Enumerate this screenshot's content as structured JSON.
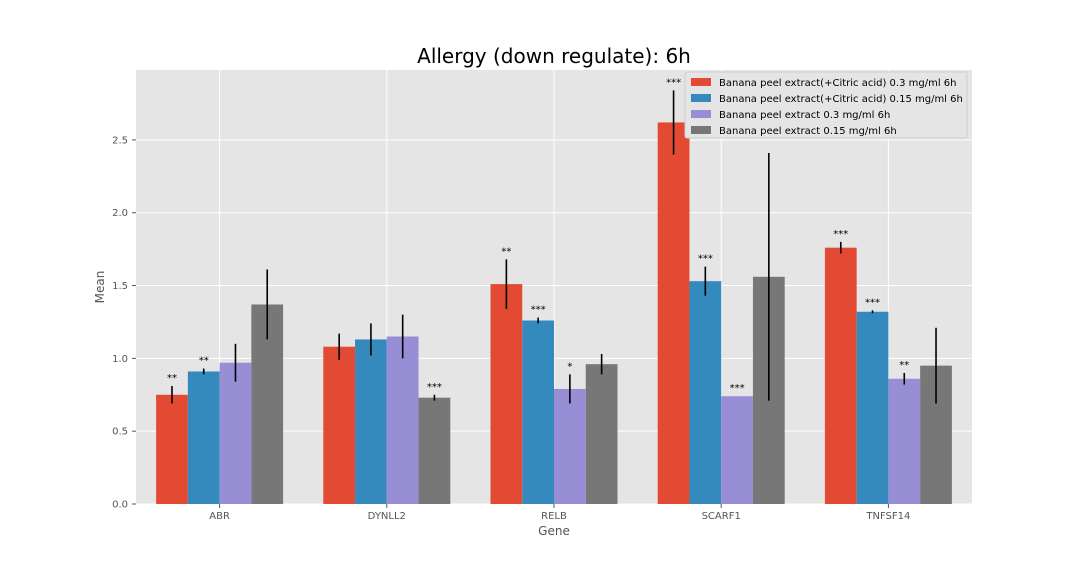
{
  "chart_data": {
    "type": "bar",
    "title": "Allergy (down regulate): 6h",
    "xlabel": "Gene",
    "ylabel": "Mean",
    "categories": [
      "ABR",
      "DYNLL2",
      "RELB",
      "SCARF1",
      "TNFSF14"
    ],
    "ylim": [
      0,
      2.98
    ],
    "yticks": [
      "0.0",
      "0.5",
      "1.0",
      "1.5",
      "2.0",
      "2.5"
    ],
    "grid": true,
    "legend_position": "top-right",
    "series": [
      {
        "name": "Banana peel extract(+Citric acid) 0.3 mg/ml 6h",
        "color": "#e24a33",
        "values": [
          0.75,
          1.08,
          1.51,
          2.62,
          1.76
        ],
        "errors": [
          0.06,
          0.09,
          0.17,
          0.22,
          0.04
        ],
        "significance": [
          "**",
          "",
          "**",
          "***",
          "***"
        ]
      },
      {
        "name": "Banana peel extract(+Citric acid) 0.15 mg/ml 6h",
        "color": "#348abd",
        "values": [
          0.91,
          1.13,
          1.26,
          1.53,
          1.32
        ],
        "errors": [
          0.02,
          0.11,
          0.02,
          0.1,
          0.01
        ],
        "significance": [
          "**",
          "",
          "***",
          "***",
          "***"
        ]
      },
      {
        "name": "Banana peel extract 0.3 mg/ml 6h",
        "color": "#988ed5",
        "values": [
          0.97,
          1.15,
          0.79,
          0.74,
          0.86
        ],
        "errors": [
          0.13,
          0.15,
          0.1,
          0.0,
          0.04
        ],
        "significance": [
          "",
          "",
          "*",
          "***",
          "**"
        ]
      },
      {
        "name": "Banana peel extract 0.15 mg/ml 6h",
        "color": "#777777",
        "values": [
          1.37,
          0.73,
          0.96,
          1.56,
          0.95
        ],
        "errors": [
          0.24,
          0.02,
          0.07,
          0.85,
          0.26
        ],
        "significance": [
          "",
          "***",
          "",
          "",
          ""
        ]
      }
    ]
  }
}
